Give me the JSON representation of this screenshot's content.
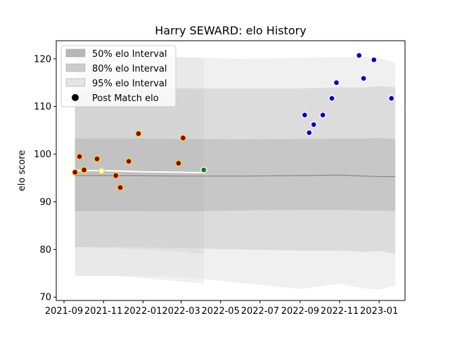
{
  "chart_data": {
    "type": "scatter",
    "title": "Harry SEWARD: elo History",
    "xlabel": "",
    "ylabel": "elo score",
    "xlim": [
      "2021-08-20",
      "2023-02-10"
    ],
    "ylim": [
      69.3,
      123.8
    ],
    "x_ticks": [
      {
        "date": "2021-09-01",
        "label": "2021-09"
      },
      {
        "date": "2021-11-01",
        "label": "2021-11"
      },
      {
        "date": "2022-01-01",
        "label": "2022-01"
      },
      {
        "date": "2022-03-01",
        "label": "2022-03"
      },
      {
        "date": "2022-05-01",
        "label": "2022-05"
      },
      {
        "date": "2022-07-01",
        "label": "2022-07"
      },
      {
        "date": "2022-09-01",
        "label": "2022-09"
      },
      {
        "date": "2022-11-01",
        "label": "2022-11"
      },
      {
        "date": "2023-01-01",
        "label": "2023-01"
      }
    ],
    "y_ticks": [
      70,
      80,
      90,
      100,
      110,
      120
    ],
    "grid": false,
    "legend_position": "top-left",
    "legend": [
      {
        "label": "50% elo Interval",
        "kind": "band",
        "color": "#b7b7b7"
      },
      {
        "label": "80% elo Interval",
        "kind": "band",
        "color": "#cccccc"
      },
      {
        "label": "95% elo Interval",
        "kind": "band",
        "color": "#e4e4e4"
      },
      {
        "label": "Post Match elo",
        "kind": "marker",
        "color": "#000000"
      }
    ],
    "band_group_1": {
      "x": [
        "2021-09-18",
        "2021-11-15",
        "2022-01-01",
        "2022-03-01",
        "2022-04-05"
      ],
      "mean": [
        96.3,
        96.2,
        96.0,
        95.9,
        95.8
      ],
      "intervals": [
        {
          "name": "95% elo Interval",
          "lower": [
            74.5,
            74.5,
            74.0,
            73.3,
            72.8
          ],
          "upper": [
            120.4,
            120.6,
            120.5,
            120.3,
            120.2
          ],
          "color": "#e4e4e4"
        },
        {
          "name": "80% elo Interval",
          "lower": [
            80.5,
            80.3,
            80.0,
            79.5,
            79.0
          ],
          "upper": [
            113.5,
            113.7,
            113.6,
            113.5,
            113.4
          ],
          "color": "#cccccc"
        },
        {
          "name": "50% elo Interval",
          "lower": [
            88.0,
            88.0,
            88.0,
            87.9,
            87.8
          ],
          "upper": [
            103.3,
            103.4,
            103.3,
            103.2,
            103.1
          ],
          "color": "#b7b7b7"
        }
      ]
    },
    "band_group_2": {
      "x": [
        "2021-09-18",
        "2021-12-01",
        "2022-03-01",
        "2022-06-01",
        "2022-09-01",
        "2022-11-01",
        "2022-12-10",
        "2023-01-01",
        "2023-01-26"
      ],
      "mean": [
        95.5,
        95.5,
        95.4,
        95.4,
        95.5,
        95.6,
        95.4,
        95.3,
        95.3
      ],
      "intervals": [
        {
          "name": "95% elo Interval",
          "lower": [
            74.5,
            74.5,
            74.3,
            73.0,
            71.7,
            72.8,
            71.8,
            71.6,
            72.5
          ],
          "upper": [
            120.4,
            120.6,
            120.4,
            120.0,
            120.2,
            120.4,
            120.4,
            120.2,
            119.2
          ],
          "color": "#e4e4e4"
        },
        {
          "name": "80% elo Interval",
          "lower": [
            80.5,
            80.5,
            80.3,
            80.0,
            79.8,
            79.8,
            79.5,
            79.7,
            79.1
          ],
          "upper": [
            113.5,
            113.8,
            113.8,
            113.8,
            113.8,
            114.0,
            114.0,
            114.3,
            114.0
          ],
          "color": "#cccccc"
        },
        {
          "name": "50% elo Interval",
          "lower": [
            88.0,
            88.0,
            88.0,
            88.2,
            88.3,
            88.3,
            88.2,
            88.2,
            88.0
          ],
          "upper": [
            103.3,
            103.3,
            103.2,
            103.1,
            103.2,
            103.3,
            103.3,
            103.4,
            103.2
          ],
          "color": "#b7b7b7"
        }
      ]
    },
    "series": [
      {
        "name": "Post Match elo",
        "points": [
          {
            "x": "2021-09-18",
            "y": 96.2,
            "fill": "#8b0000",
            "edge": "#ffd700"
          },
          {
            "x": "2021-09-25",
            "y": 99.5,
            "fill": "#8b0000",
            "edge": "#ffd700"
          },
          {
            "x": "2021-10-02",
            "y": 96.7,
            "fill": "#8b0000",
            "edge": "#ffd700"
          },
          {
            "x": "2021-10-22",
            "y": 99.0,
            "fill": "#8b0000",
            "edge": "#ffd700"
          },
          {
            "x": "2021-10-29",
            "y": 96.5,
            "fill": "#ffffff",
            "edge": "#ffd700"
          },
          {
            "x": "2021-11-20",
            "y": 95.5,
            "fill": "#8b0000",
            "edge": "#ffd700"
          },
          {
            "x": "2021-11-27",
            "y": 93.0,
            "fill": "#8b0000",
            "edge": "#ffd700"
          },
          {
            "x": "2021-12-10",
            "y": 98.5,
            "fill": "#8b0000",
            "edge": "#ffd700"
          },
          {
            "x": "2021-12-25",
            "y": 104.3,
            "fill": "#8b0000",
            "edge": "#ffd700"
          },
          {
            "x": "2022-02-25",
            "y": 98.1,
            "fill": "#8b0000",
            "edge": "#ffd700"
          },
          {
            "x": "2022-03-04",
            "y": 103.4,
            "fill": "#8b0000",
            "edge": "#ffd700"
          },
          {
            "x": "2022-04-05",
            "y": 96.7,
            "fill": "#0a7d0a",
            "edge": "#ffffff"
          },
          {
            "x": "2022-09-08",
            "y": 108.2,
            "fill": "#0000cc",
            "edge": "#ffffff"
          },
          {
            "x": "2022-09-15",
            "y": 104.5,
            "fill": "#0000cc",
            "edge": "#ffffff"
          },
          {
            "x": "2022-09-22",
            "y": 106.2,
            "fill": "#0000cc",
            "edge": "#ffffff"
          },
          {
            "x": "2022-10-06",
            "y": 108.2,
            "fill": "#0000cc",
            "edge": "#ffffff"
          },
          {
            "x": "2022-10-20",
            "y": 111.7,
            "fill": "#0000cc",
            "edge": "#ffffff"
          },
          {
            "x": "2022-10-27",
            "y": 115.0,
            "fill": "#0000cc",
            "edge": "#ffffff"
          },
          {
            "x": "2022-12-01",
            "y": 120.7,
            "fill": "#0000cc",
            "edge": "#ffffff"
          },
          {
            "x": "2022-12-08",
            "y": 115.9,
            "fill": "#0000cc",
            "edge": "#ffffff"
          },
          {
            "x": "2022-12-24",
            "y": 119.8,
            "fill": "#0000cc",
            "edge": "#ffffff"
          },
          {
            "x": "2023-01-20",
            "y": 111.7,
            "fill": "#0000cc",
            "edge": "#ffffff"
          }
        ]
      }
    ]
  }
}
